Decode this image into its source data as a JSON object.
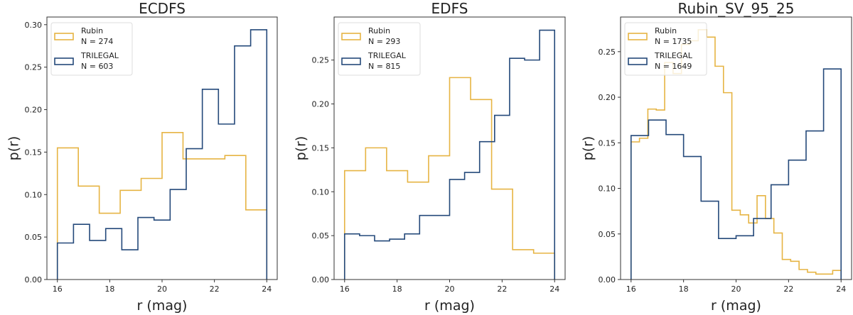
{
  "colors": {
    "Rubin": "#E6B443",
    "TRILEGAL": "#24497A"
  },
  "chart_data": [
    {
      "type": "histogram-step",
      "title": "ECDFS",
      "xlabel": "r (mag)",
      "ylabel": "p(r)",
      "xlim": [
        15.6,
        24.4
      ],
      "ylim": [
        0,
        0.309
      ],
      "xticks": [
        16,
        18,
        20,
        22,
        24
      ],
      "yticks": [
        0.0,
        0.05,
        0.1,
        0.15,
        0.2,
        0.25,
        0.3
      ],
      "legend_position": "upper-left",
      "series": [
        {
          "name": "Rubin",
          "count_label": "N = 274",
          "range": [
            16,
            24
          ],
          "values": [
            0.155,
            0.11,
            0.078,
            0.105,
            0.119,
            0.173,
            0.142,
            0.142,
            0.146,
            0.082
          ]
        },
        {
          "name": "TRILEGAL",
          "count_label": "N = 603",
          "range": [
            16,
            24
          ],
          "values": [
            0.043,
            0.065,
            0.046,
            0.06,
            0.035,
            0.073,
            0.07,
            0.106,
            0.154,
            0.224,
            0.183,
            0.275,
            0.294
          ]
        }
      ]
    },
    {
      "type": "histogram-step",
      "title": "EDFS",
      "xlabel": "r (mag)",
      "ylabel": "p(r)",
      "xlim": [
        15.6,
        24.4
      ],
      "ylim": [
        0,
        0.299
      ],
      "xticks": [
        16,
        18,
        20,
        22,
        24
      ],
      "yticks": [
        0.0,
        0.05,
        0.1,
        0.15,
        0.2,
        0.25
      ],
      "legend_position": "upper-left",
      "series": [
        {
          "name": "Rubin",
          "count_label": "N = 293",
          "range": [
            16,
            24
          ],
          "values": [
            0.124,
            0.15,
            0.124,
            0.111,
            0.141,
            0.23,
            0.205,
            0.103,
            0.034,
            0.03
          ]
        },
        {
          "name": "TRILEGAL",
          "count_label": "N = 815",
          "range": [
            16,
            24
          ],
          "values": [
            0.052,
            0.05,
            0.044,
            0.046,
            0.052,
            0.073,
            0.073,
            0.114,
            0.122,
            0.157,
            0.187,
            0.252,
            0.25,
            0.284
          ]
        }
      ]
    },
    {
      "type": "histogram-step",
      "title": "Rubin_SV_95_25",
      "xlabel": "r (mag)",
      "ylabel": "p(r)",
      "xlim": [
        15.6,
        24.4
      ],
      "ylim": [
        0,
        0.288
      ],
      "xticks": [
        16,
        18,
        20,
        22,
        24
      ],
      "yticks": [
        0.0,
        0.05,
        0.1,
        0.15,
        0.2,
        0.25
      ],
      "legend_position": "upper-left",
      "series": [
        {
          "name": "Rubin",
          "count_label": "N = 1735",
          "range": [
            16,
            24
          ],
          "values": [
            0.151,
            0.155,
            0.187,
            0.186,
            0.238,
            0.226,
            0.258,
            0.262,
            0.274,
            0.266,
            0.234,
            0.205,
            0.076,
            0.071,
            0.062,
            0.092,
            0.067,
            0.051,
            0.022,
            0.02,
            0.011,
            0.008,
            0.006,
            0.006,
            0.01
          ]
        },
        {
          "name": "TRILEGAL",
          "count_label": "N = 1649",
          "range": [
            16,
            24
          ],
          "values": [
            0.158,
            0.175,
            0.159,
            0.135,
            0.086,
            0.045,
            0.048,
            0.067,
            0.104,
            0.131,
            0.163,
            0.231
          ]
        }
      ]
    }
  ]
}
